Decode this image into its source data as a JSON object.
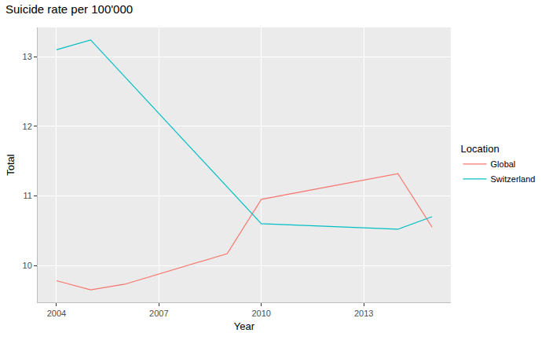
{
  "chart_data": {
    "type": "line",
    "title": "Suicide rate per 100'000",
    "x_label": "Year",
    "y_label": "Total",
    "legend_title": "Location",
    "series": [
      {
        "name": "Global",
        "color": "#F8766D",
        "x": [
          2004,
          2005,
          2006,
          2009,
          2010,
          2014,
          2015
        ],
        "values": [
          9.78,
          9.65,
          9.73,
          10.17,
          10.95,
          11.32,
          10.55
        ]
      },
      {
        "name": "Switzerland",
        "color": "#00BFC4",
        "x": [
          2004,
          2005,
          2010,
          2014,
          2015
        ],
        "values": [
          13.1,
          13.24,
          10.6,
          10.52,
          10.7
        ]
      }
    ],
    "xlim": [
      2003.45,
      2015.55
    ],
    "xticks": [
      2004,
      2007,
      2010,
      2013
    ],
    "ylim": [
      9.47,
      13.42
    ],
    "yticks": [
      10,
      11,
      12,
      13
    ],
    "grid": true,
    "legend": "right"
  }
}
